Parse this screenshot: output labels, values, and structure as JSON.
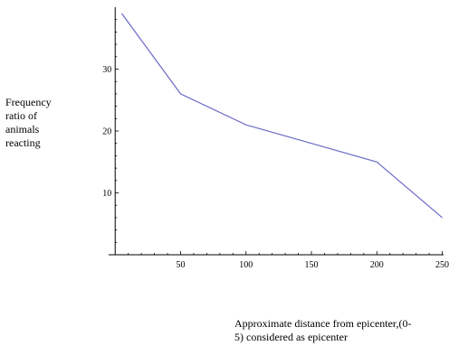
{
  "chart_data": {
    "type": "line",
    "title": "",
    "ylabel_lines": [
      "Frequency",
      "ratio of",
      "animals",
      "reacting"
    ],
    "xlabel_lines": [
      "Approximate distance from epicenter,(0-",
      "5) considered as epicenter"
    ],
    "xlim": [
      -5,
      251
    ],
    "ylim": [
      0,
      40
    ],
    "x_ticks": [
      50,
      100,
      150,
      200,
      250
    ],
    "y_ticks": [
      10,
      20,
      30
    ],
    "grid": false,
    "line_color": "#6b6bc8",
    "series": [
      {
        "x": [
          5,
          50,
          100,
          150,
          200,
          250
        ],
        "y": [
          39,
          26,
          21,
          18,
          15,
          6
        ]
      }
    ]
  }
}
